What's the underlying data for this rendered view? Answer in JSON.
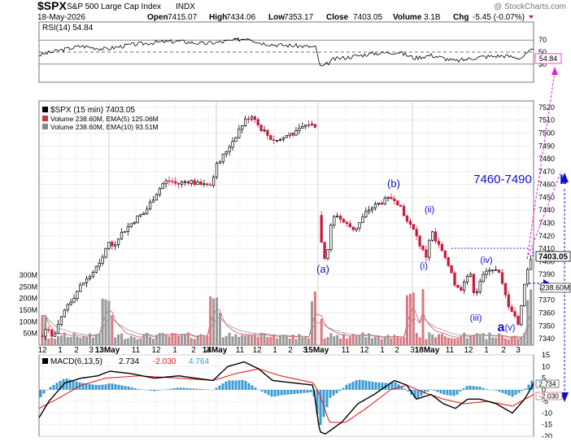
{
  "header": {
    "symbol": "$SPX",
    "name": "S&P 500 Large Cap Index",
    "exchange": "INDX",
    "watermark": "@ StockCharts.com",
    "date": "18-May-2026",
    "quote": {
      "open_label": "Open",
      "open": "7415.07",
      "high_label": "High",
      "high": "7434.06",
      "low_label": "Low",
      "low": "7353.17",
      "close_label": "Close",
      "close": "7403.05",
      "volume_label": "Volume",
      "volume": "3.1B",
      "chg_label": "Chg",
      "chg": "-5.45 (-0.07%)"
    }
  },
  "rsi": {
    "label": "RSI(14) 54.84",
    "ticks": [
      "70",
      "50",
      "30"
    ],
    "last": "54.84"
  },
  "price": {
    "legend_main": "$SPX (15 min) 7403.05",
    "legend_vol5": "Volume 238.60M, EMA(5) 125.06M",
    "legend_vol10": "Volume 238.60M, EMA(10) 93.51M",
    "ticks": [
      "7520",
      "7510",
      "7500",
      "7490",
      "7480",
      "7470",
      "7460",
      "7450",
      "7440",
      "7430",
      "7420",
      "7410",
      "7400",
      "7390",
      "7380",
      "7370",
      "7360",
      "7350",
      "7340"
    ],
    "last_price_label": "7403.05",
    "last_volume_label": "238.60M",
    "volume_ticks": [
      "300M",
      "250M",
      "200M",
      "150M",
      "100M",
      "50M"
    ]
  },
  "annotations": {
    "wave_a": "(a)",
    "wave_b": "(b)",
    "wave_i": "(i)",
    "wave_ii": "(ii)",
    "wave_iii": "(iii)",
    "wave_iv": "(iv)",
    "wave_v": "(v)",
    "wave_a_big": "a",
    "wave_b_big": "b",
    "target": "7460-7490"
  },
  "time_axis": [
    "12",
    "1",
    "2",
    "3",
    "13May",
    "11",
    "12",
    "1",
    "2",
    "3",
    "14May",
    "11",
    "12",
    "1",
    "2",
    "3",
    "15May",
    "11",
    "12",
    "1",
    "2",
    "3",
    "18May",
    "11",
    "12",
    "1",
    "2",
    "3"
  ],
  "macd": {
    "label": "MACD(6,13,5)",
    "macd_value": "2.734",
    "signal_value": "-2.030",
    "hist_value": "4.764",
    "ticks": [
      "15",
      "10",
      "5",
      "0",
      "-5",
      "-10",
      "-15",
      "-20"
    ],
    "last_macd": "2.734",
    "last_signal": "-2.030"
  },
  "colors": {
    "up": "#000000",
    "down": "#cc1a3c",
    "annotation": "#1010cc",
    "projection": "#e020e0",
    "macd": "#000000",
    "signal": "#e01010",
    "histogram": "#3b9bd0",
    "rsi_fill": "#4a8a4a"
  },
  "chart_data": [
    {
      "type": "line",
      "title": "RSI(14) 54.84",
      "ylim": [
        0,
        100
      ],
      "ticks": [
        70,
        50,
        30
      ],
      "series": [
        {
          "name": "RSI(14)",
          "x": [
            "12",
            "13May",
            "14May",
            "15May",
            "18May",
            "3"
          ],
          "values": [
            50,
            60,
            70,
            35,
            40,
            54.84
          ]
        }
      ]
    },
    {
      "type": "candlestick",
      "title": "$SPX (15 min) 7403.05",
      "ylim": [
        7335,
        7525
      ],
      "x": [
        "12",
        "1",
        "2",
        "3",
        "13May",
        "11",
        "12",
        "1",
        "2",
        "3",
        "14May",
        "11",
        "12",
        "1",
        "2",
        "3",
        "15May",
        "11",
        "12",
        "1",
        "2",
        "3",
        "18May",
        "11",
        "12",
        "1",
        "2",
        "3"
      ],
      "close": [
        7342,
        7350,
        7368,
        7382,
        7398,
        7412,
        7430,
        7438,
        7452,
        7475,
        7500,
        7511,
        7495,
        7490,
        7503,
        7506,
        7398,
        7430,
        7442,
        7452,
        7450,
        7420,
        7395,
        7382,
        7393,
        7386,
        7360,
        7403.05
      ],
      "last_close": 7403.05
    },
    {
      "type": "bar",
      "title": "Volume",
      "ylim": [
        0,
        300
      ],
      "unit": "M",
      "x": [
        "13May",
        "14May",
        "15May",
        "18May",
        "3"
      ],
      "values": [
        180,
        200,
        230,
        240,
        238.6
      ]
    },
    {
      "type": "line",
      "title": "MACD(6,13,5) 2.734, -2.030, 4.764",
      "ylim": [
        -20,
        15
      ],
      "series": [
        {
          "name": "MACD",
          "x": [
            "12",
            "13May",
            "14May",
            "15May",
            "18May",
            "3"
          ],
          "values": [
            -5,
            8,
            10,
            -15,
            -5,
            2.734
          ]
        },
        {
          "name": "Signal",
          "x": [
            "12",
            "13May",
            "14May",
            "15May",
            "18May",
            "3"
          ],
          "values": [
            -3,
            6,
            9,
            -12,
            -7,
            -2.03
          ]
        },
        {
          "name": "Histogram",
          "x": [
            "3"
          ],
          "values": [
            4.764
          ]
        }
      ]
    }
  ]
}
